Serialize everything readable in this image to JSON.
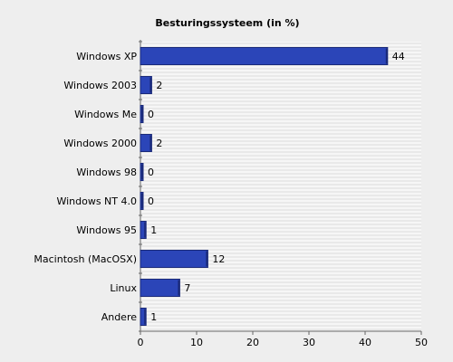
{
  "chart_data": {
    "type": "bar",
    "orientation": "horizontal",
    "title": "Besturingssysteem (in %)",
    "xlabel": "",
    "ylabel": "",
    "categories": [
      "Windows XP",
      "Windows 2003",
      "Windows Me",
      "Windows 2000",
      "Windows 98",
      "Windows NT 4.0",
      "Windows 95",
      "Macintosh (MacOSX)",
      "Linux",
      "Andere"
    ],
    "values": [
      44,
      2,
      0,
      2,
      0,
      0,
      1,
      12,
      7,
      1
    ],
    "data_labels": [
      "44",
      "2",
      "0",
      "2",
      "0",
      "0",
      "1",
      "12",
      "7",
      "1"
    ],
    "xlim": [
      0,
      50
    ],
    "x_ticks": [
      0,
      10,
      20,
      30,
      40,
      50
    ],
    "x_tick_labels": [
      "0",
      "10",
      "20",
      "30",
      "40",
      "50"
    ],
    "grid": true,
    "colors": {
      "background": "#eeeeee",
      "plot_background": "#f6f6f6",
      "gridline": "#dcdcdc",
      "bar": "#2b45b8",
      "bar_edge": "#1a2a7a",
      "bar_shade": "#3a56cc",
      "axis": "#666666"
    }
  }
}
